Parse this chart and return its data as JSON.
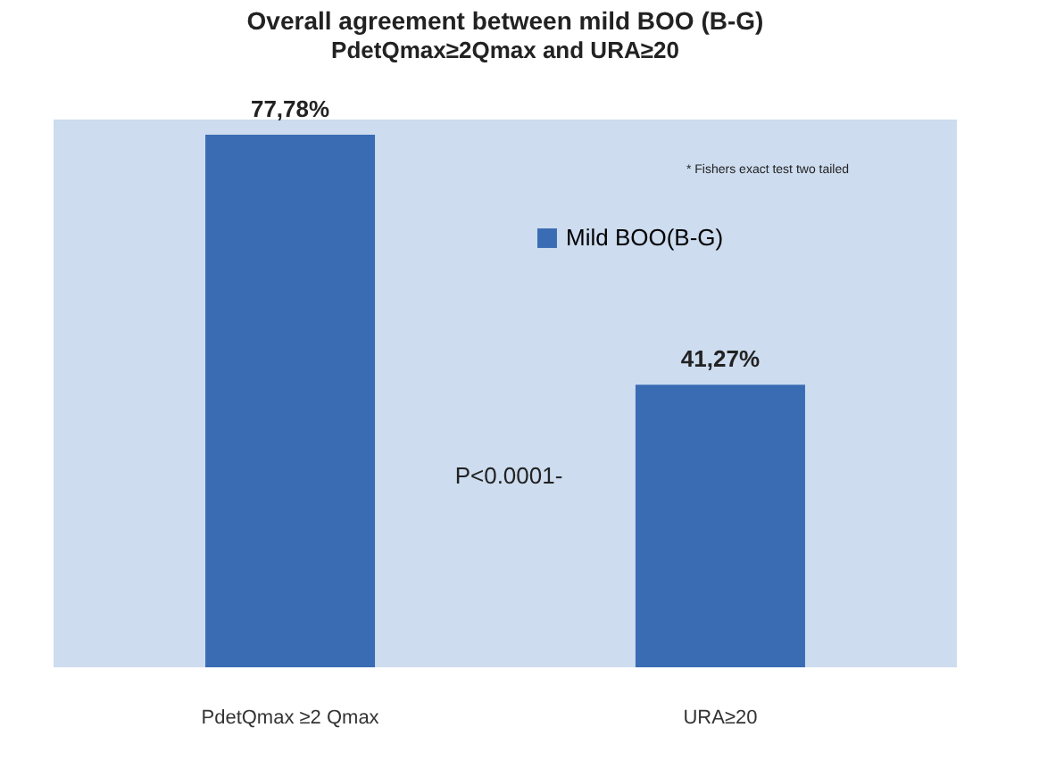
{
  "chart_data": {
    "type": "bar",
    "title": "Overall agreement between mild BOO (B-G)",
    "subtitle": "PdetQmax≥2Qmax  and URA≥20",
    "categories": [
      "PdetQmax ≥2 Qmax",
      "URA≥20"
    ],
    "series": [
      {
        "name": "Mild BOO(B-G)",
        "color": "#3a6cb4",
        "values": [
          77.78,
          41.27
        ],
        "value_labels": [
          "77,78%",
          "41,27%"
        ]
      }
    ],
    "annotations": [
      "* Fishers exact test two tailed",
      "P<0.0001-"
    ],
    "legend": "top right"
  }
}
